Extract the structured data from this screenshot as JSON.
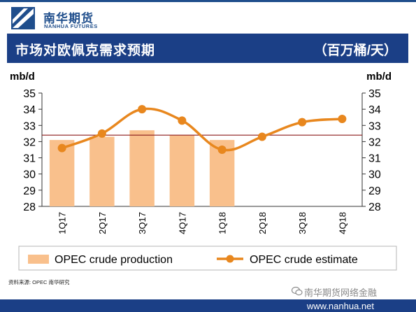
{
  "header": {
    "logo_cn": "南华期货",
    "logo_en": "NANHUA FUTURES"
  },
  "title_bar": {
    "title": "市场对欧佩克需求预期",
    "unit": "（百万桶/天）"
  },
  "footer": {
    "source": "资料来源: OPEC  南华研究",
    "watermark": "南华期货网络金融",
    "url": "www.nanhua.net"
  },
  "colors": {
    "brand": "#1b3f86",
    "bar": "#f9c08c",
    "line": "#e8871e",
    "ref_line": "#8b1a1a"
  },
  "chart_data": {
    "type": "bar",
    "left_unit": "mb/d",
    "right_unit": "mb/d",
    "categories": [
      "1Q17",
      "2Q17",
      "3Q17",
      "4Q17",
      "1Q18",
      "2Q18",
      "3Q18",
      "4Q18"
    ],
    "ylim": [
      28,
      35
    ],
    "yticks": [
      28,
      29,
      30,
      31,
      32,
      33,
      34,
      35
    ],
    "reference_line": 32.4,
    "series": [
      {
        "name": "OPEC crude production",
        "type": "bar",
        "values": [
          32.1,
          32.3,
          32.7,
          32.4,
          32.1,
          null,
          null,
          null
        ]
      },
      {
        "name": "OPEC crude estimate",
        "type": "line",
        "values": [
          31.6,
          32.5,
          34.0,
          33.3,
          31.5,
          32.3,
          33.2,
          33.4
        ]
      }
    ],
    "legend_position": "bottom"
  }
}
